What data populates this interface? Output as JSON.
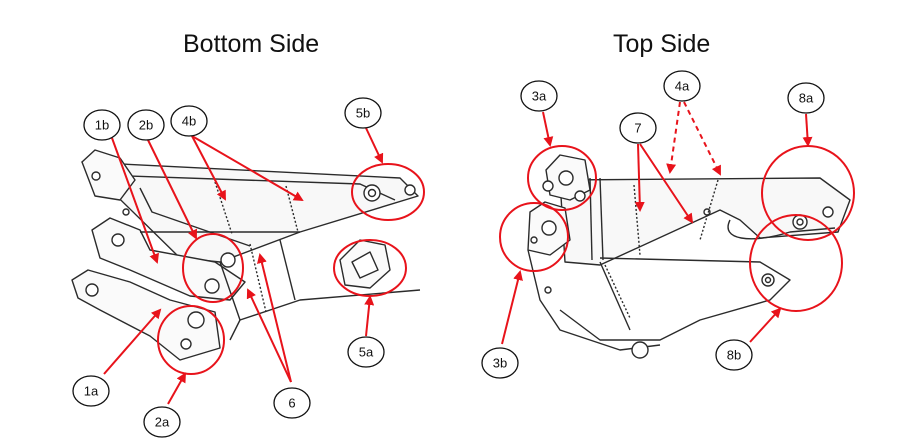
{
  "titles": {
    "bottom": "Bottom Side",
    "top": "Top Side"
  },
  "colors": {
    "annotation": "#e8131b",
    "drawing": "#2b2b2b"
  },
  "callouts": {
    "c1a": "1a",
    "c1b": "1b",
    "c2a": "2a",
    "c2b": "2b",
    "c4b": "4b",
    "c5a": "5a",
    "c5b": "5b",
    "c6": "6",
    "c3a": "3a",
    "c3b": "3b",
    "c4a": "4a",
    "c7": "7",
    "c8a": "8a",
    "c8b": "8b"
  }
}
